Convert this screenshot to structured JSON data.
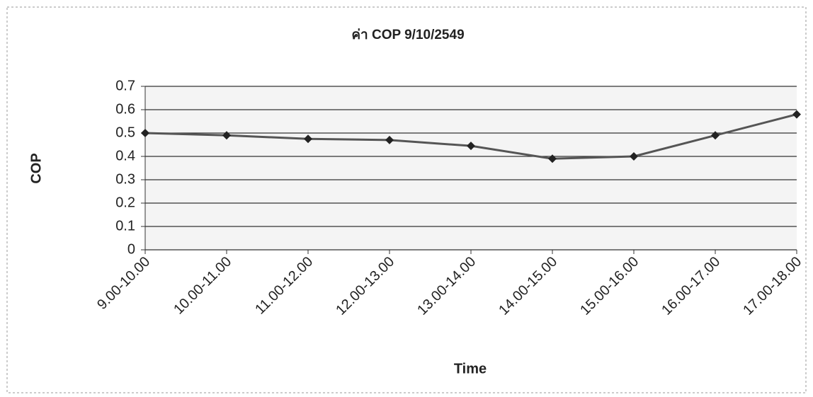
{
  "chart_data": {
    "type": "line",
    "title": "ค่า COP 9/10/2549",
    "x_label": "Time",
    "y_label": "COP",
    "categories": [
      "9.00-10.00",
      "10.00-11.00",
      "11.00-12.00",
      "12.00-13.00",
      "13.00-14.00",
      "14.00-15.00",
      "15.00-16.00",
      "16.00-17.00",
      "17.00-18.00"
    ],
    "series": [
      {
        "name": "COP",
        "color": "#555555",
        "values": [
          0.5,
          0.49,
          0.475,
          0.47,
          0.445,
          0.39,
          0.4,
          0.49,
          0.58
        ]
      }
    ],
    "ylim": [
      0,
      0.7
    ],
    "yticks": [
      0,
      0.1,
      0.2,
      0.3,
      0.4,
      0.5,
      0.6,
      0.7
    ],
    "grid": true
  }
}
